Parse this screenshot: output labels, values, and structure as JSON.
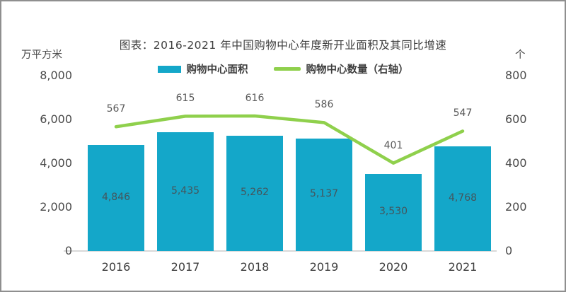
{
  "chart_data": {
    "type": "bar+line",
    "title": "图表：2016-2021 年中国购物中心年度新开业面积及其同比增速",
    "categories": [
      "2016",
      "2017",
      "2018",
      "2019",
      "2020",
      "2021"
    ],
    "series": [
      {
        "name": "购物中心面积",
        "type": "bar",
        "axis": "left",
        "color": "#14A7C9",
        "values": [
          4846,
          5435,
          5262,
          5137,
          3530,
          4768
        ],
        "labels": [
          "4,846",
          "5,435",
          "5,262",
          "5,137",
          "3,530",
          "4,768"
        ]
      },
      {
        "name": "购物中心数量（右轴）",
        "type": "line",
        "axis": "right",
        "color": "#8FD04C",
        "values": [
          567,
          615,
          616,
          586,
          401,
          547
        ],
        "labels": [
          "567",
          "615",
          "616",
          "586",
          "401",
          "547"
        ]
      }
    ],
    "left_axis": {
      "unit": "万平方米",
      "range": [
        0,
        8000
      ],
      "tick_step": 2000,
      "ticks": [
        "8,000",
        "6,000",
        "4,000",
        "2,000",
        "0"
      ]
    },
    "right_axis": {
      "unit": "个",
      "range": [
        0,
        800
      ],
      "tick_step": 200,
      "ticks": [
        "800",
        "600",
        "400",
        "200",
        "0"
      ]
    },
    "grid": false,
    "legend_position": "top-center",
    "baseline_color": "#d9d9d9"
  }
}
